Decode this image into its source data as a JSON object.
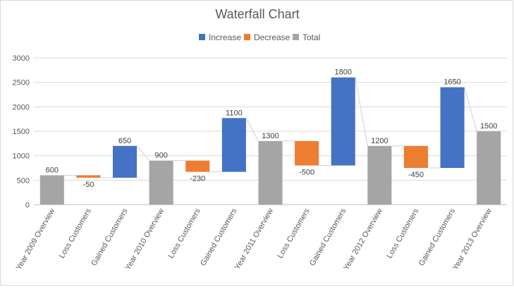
{
  "chart_data": {
    "type": "waterfall",
    "title": "Waterfall Chart",
    "xlabel": "",
    "ylabel": "",
    "ylim": [
      0,
      3000
    ],
    "yticks": [
      0,
      500,
      1000,
      1500,
      2000,
      2500,
      3000
    ],
    "grid": true,
    "legend": {
      "position": "top",
      "items": [
        {
          "key": "increase",
          "label": "Increase",
          "color": "#4472C4"
        },
        {
          "key": "decrease",
          "label": "Decrease",
          "color": "#ED7D31"
        },
        {
          "key": "total",
          "label": "Total",
          "color": "#A5A5A5"
        }
      ]
    },
    "categories": [
      "Year 2009 Overview",
      "Loss Customers",
      "Gained Customers",
      "Year 2010 Overview",
      "Loss Customers",
      "Gained Customers",
      "Year 2011 Overview",
      "Loss Customers",
      "Gained Customers",
      "Year 2012 Overview",
      "Loss Customers",
      "Gained Customers",
      "Year 2013 Overview"
    ],
    "bars": [
      {
        "kind": "total",
        "base": 0,
        "top": 600,
        "label": "600"
      },
      {
        "kind": "decrease",
        "base": 550,
        "top": 600,
        "label": "-50"
      },
      {
        "kind": "increase",
        "base": 550,
        "top": 1200,
        "label": "650"
      },
      {
        "kind": "total",
        "base": 0,
        "top": 900,
        "label": "900"
      },
      {
        "kind": "decrease",
        "base": 670,
        "top": 900,
        "label": "-230"
      },
      {
        "kind": "increase",
        "base": 670,
        "top": 1770,
        "label": "1100"
      },
      {
        "kind": "total",
        "base": 0,
        "top": 1300,
        "label": "1300"
      },
      {
        "kind": "decrease",
        "base": 800,
        "top": 1300,
        "label": "-500"
      },
      {
        "kind": "increase",
        "base": 800,
        "top": 2600,
        "label": "1800"
      },
      {
        "kind": "total",
        "base": 0,
        "top": 1200,
        "label": "1200"
      },
      {
        "kind": "decrease",
        "base": 750,
        "top": 1200,
        "label": "-450"
      },
      {
        "kind": "increase",
        "base": 750,
        "top": 2400,
        "label": "1650"
      },
      {
        "kind": "total",
        "base": 0,
        "top": 1500,
        "label": "1500"
      }
    ]
  }
}
